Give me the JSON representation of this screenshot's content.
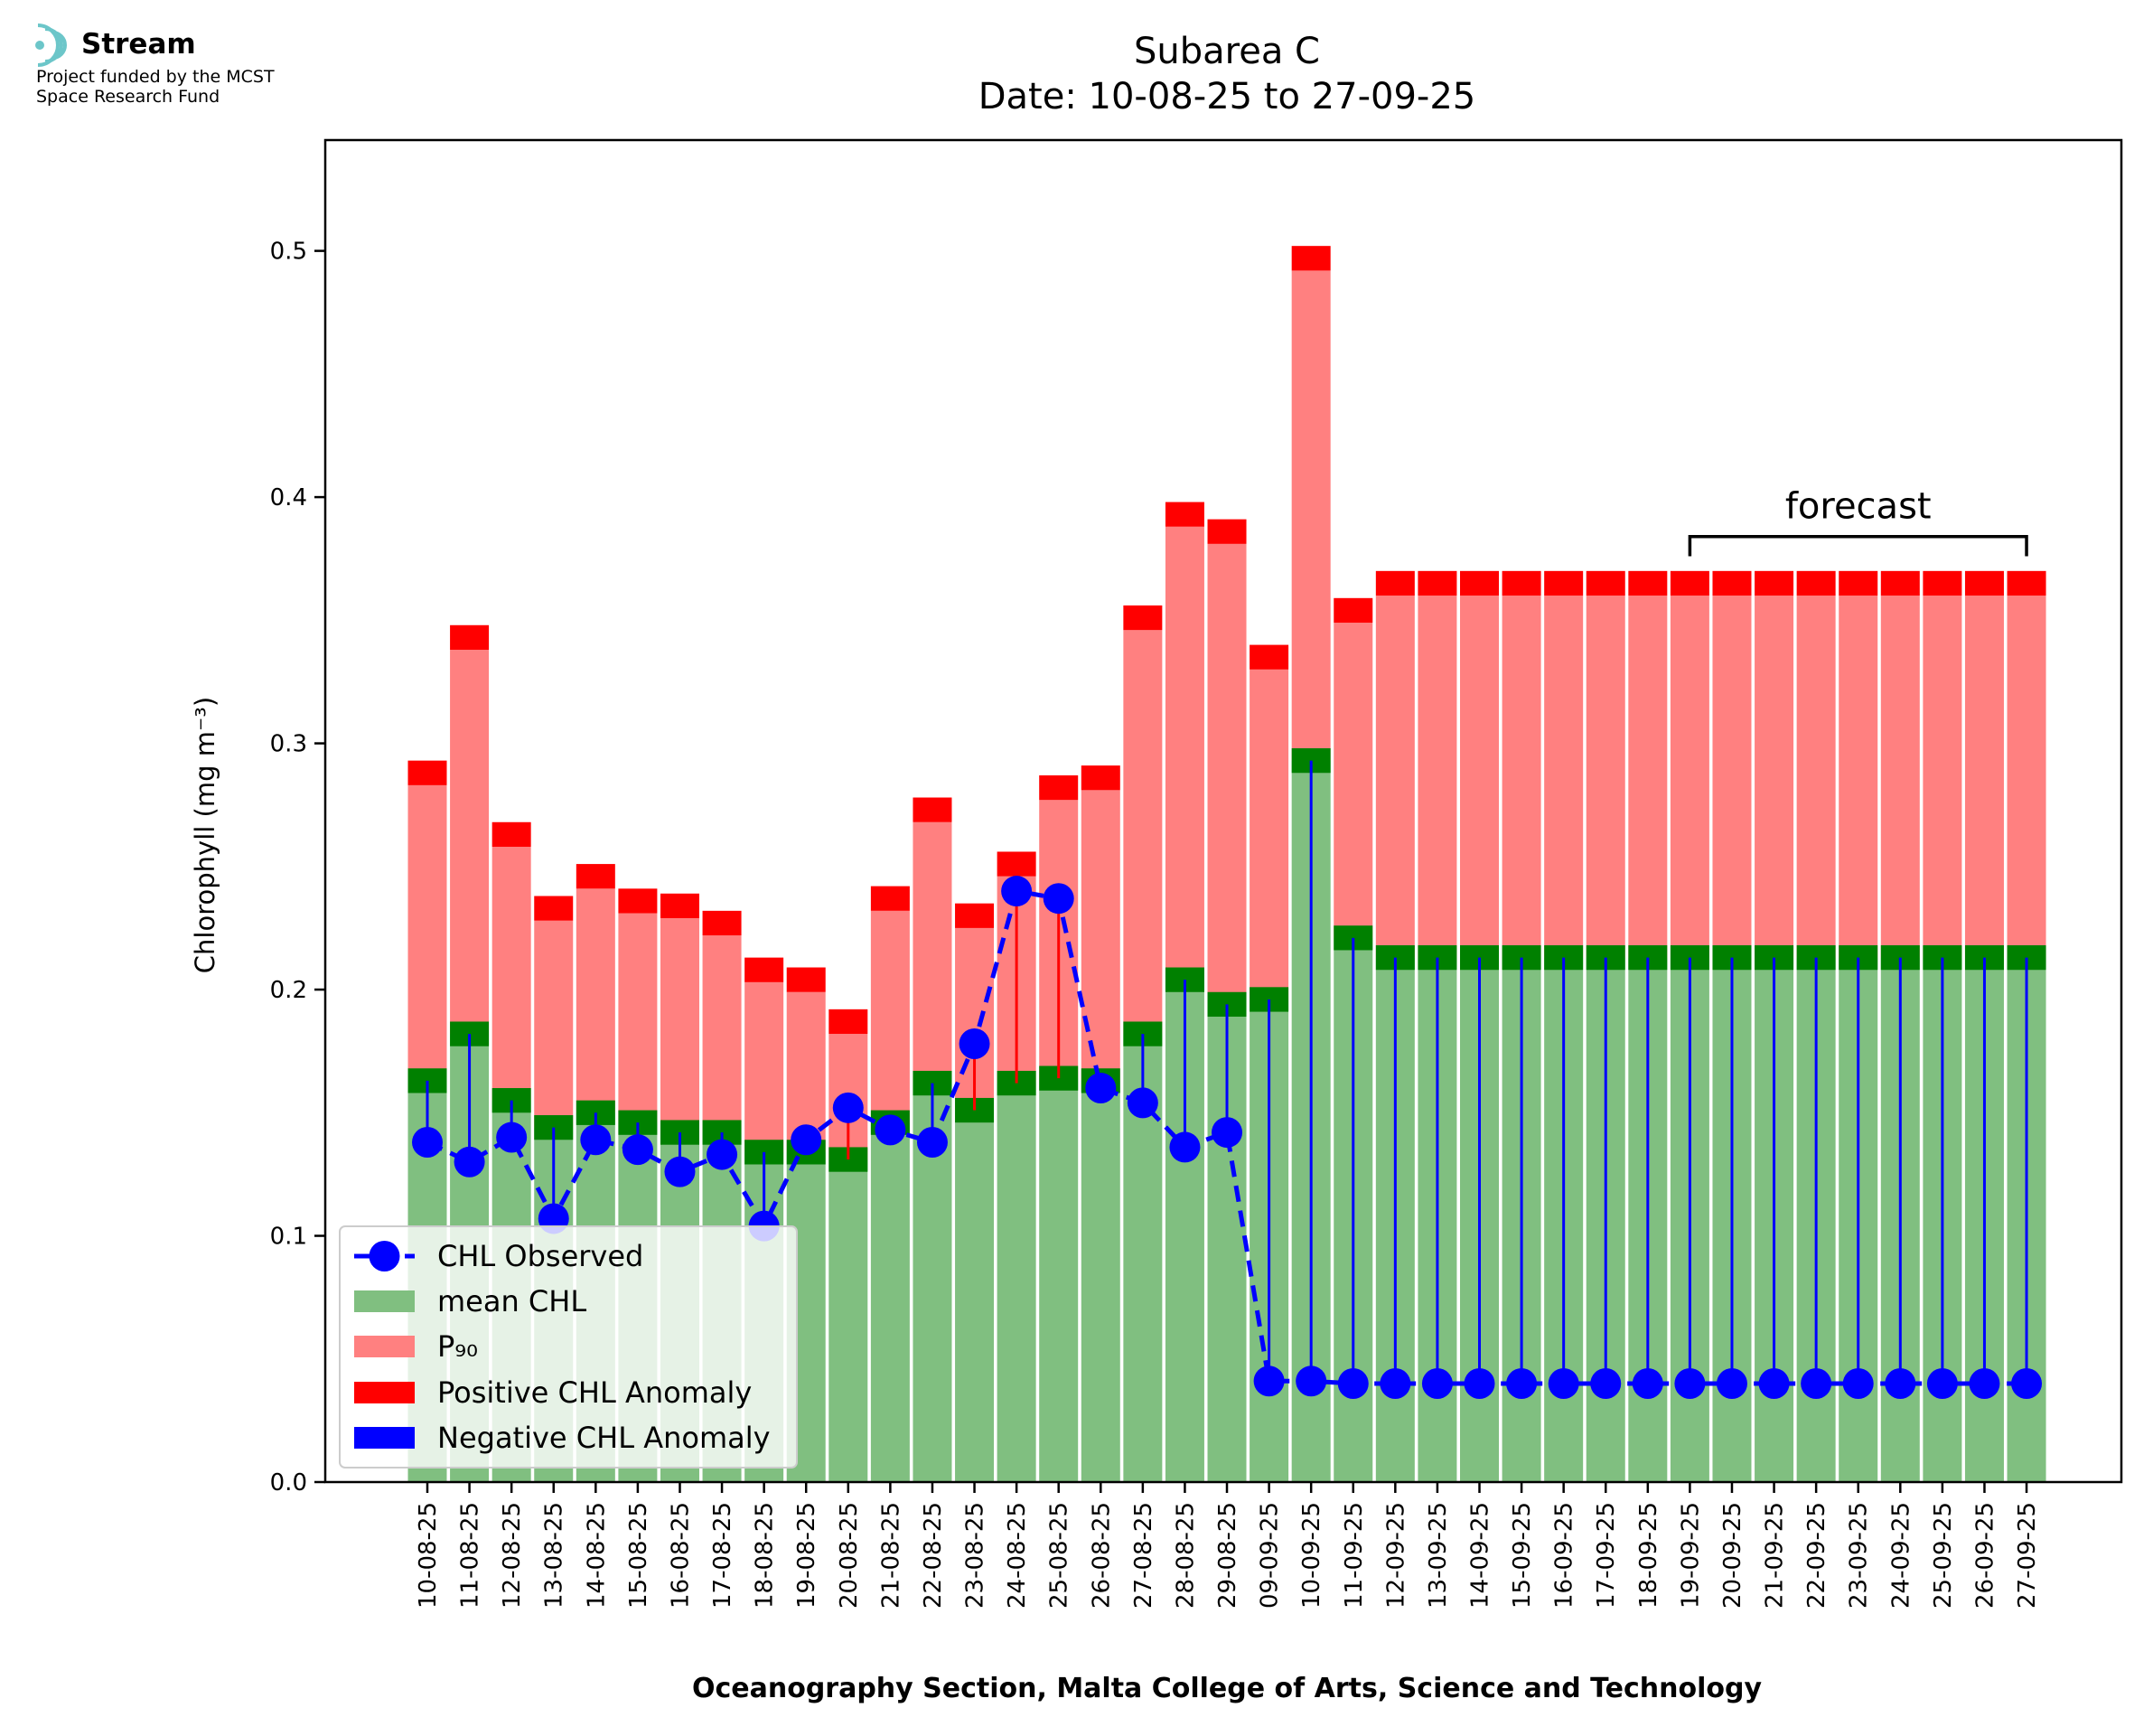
{
  "logo": {
    "name": "Stream",
    "line1": "Project funded by the MCST",
    "line2": "Space Research Fund",
    "color": "#6cc6c9"
  },
  "chart_data": {
    "type": "bar",
    "title": "Subarea C",
    "subtitle": "Date: 10-08-25 to 27-09-25",
    "xlabel": "Oceanography Section, Malta College of Arts, Science and Technology",
    "ylabel": "Chlorophyll (mg m⁻³)",
    "ylim": [
      0,
      0.545
    ],
    "yticks": [
      0.0,
      0.1,
      0.2,
      0.3,
      0.4,
      0.5
    ],
    "ytick_labels": [
      "0.0",
      "0.1",
      "0.2",
      "0.3",
      "0.4",
      "0.5"
    ],
    "categories": [
      "10-08-25",
      "11-08-25",
      "12-08-25",
      "13-08-25",
      "14-08-25",
      "15-08-25",
      "16-08-25",
      "17-08-25",
      "18-08-25",
      "19-08-25",
      "20-08-25",
      "21-08-25",
      "22-08-25",
      "23-08-25",
      "24-08-25",
      "25-08-25",
      "26-08-25",
      "27-08-25",
      "28-08-25",
      "29-08-25",
      "09-09-25",
      "10-09-25",
      "11-09-25",
      "12-09-25",
      "13-09-25",
      "14-09-25",
      "15-09-25",
      "16-09-25",
      "17-09-25",
      "18-09-25",
      "19-09-25",
      "20-09-25",
      "21-09-25",
      "22-09-25",
      "23-09-25",
      "24-09-25",
      "25-09-25",
      "26-09-25",
      "27-09-25"
    ],
    "series": [
      {
        "name": "mean CHL",
        "color": "#80bf80",
        "values": [
          0.163,
          0.182,
          0.155,
          0.144,
          0.15,
          0.146,
          0.142,
          0.142,
          0.134,
          0.134,
          0.131,
          0.146,
          0.162,
          0.151,
          0.162,
          0.164,
          0.163,
          0.182,
          0.204,
          0.194,
          0.196,
          0.293,
          0.221,
          0.213,
          0.213,
          0.213,
          0.213,
          0.213,
          0.213,
          0.213,
          0.213,
          0.213,
          0.213,
          0.213,
          0.213,
          0.213,
          0.213,
          0.213,
          0.213
        ]
      },
      {
        "name": "P₉₀",
        "color": "#ff8080",
        "values": [
          0.283,
          0.338,
          0.258,
          0.228,
          0.241,
          0.231,
          0.229,
          0.222,
          0.203,
          0.199,
          0.182,
          0.232,
          0.268,
          0.225,
          0.246,
          0.277,
          0.281,
          0.346,
          0.388,
          0.381,
          0.33,
          0.492,
          0.349,
          0.36,
          0.36,
          0.36,
          0.36,
          0.36,
          0.36,
          0.36,
          0.36,
          0.36,
          0.36,
          0.36,
          0.36,
          0.36,
          0.36,
          0.36,
          0.36
        ]
      },
      {
        "name": "CHL Observed",
        "color": "#0000ff",
        "values": [
          0.138,
          0.13,
          0.14,
          0.107,
          0.139,
          0.135,
          0.126,
          0.133,
          0.104,
          0.139,
          0.152,
          0.143,
          0.138,
          0.178,
          0.24,
          0.237,
          0.16,
          0.154,
          0.136,
          0.142,
          0.041,
          0.041,
          0.04,
          0.04,
          0.04,
          0.04,
          0.04,
          0.04,
          0.04,
          0.04,
          0.04,
          0.04,
          0.04,
          0.04,
          0.04,
          0.04,
          0.04,
          0.04,
          0.04
        ]
      }
    ],
    "anomaly_band": 0.01,
    "anomaly_colors": {
      "positive": "#ff0000",
      "mean_band": "#008000",
      "negative": "#0000ff"
    },
    "forecast": {
      "label": "forecast",
      "from_category": "19-09-25",
      "to_category": "27-09-25"
    },
    "legend": {
      "position": "bottom-left",
      "entries": [
        "CHL Observed",
        "mean CHL",
        "P₉₀",
        "Positive CHL Anomaly",
        "Negative CHL Anomaly"
      ]
    }
  }
}
